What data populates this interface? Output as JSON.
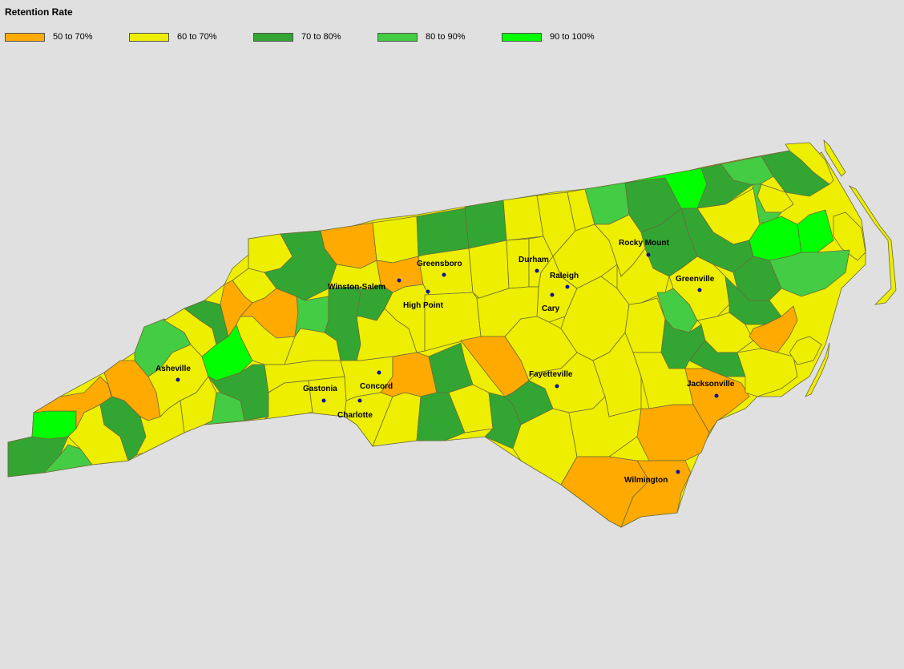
{
  "title": "Retention Rate",
  "legend": [
    {
      "label": "50 to 70%",
      "color": "#ffaa00"
    },
    {
      "label": "60 to 70%",
      "color": "#eeee00"
    },
    {
      "label": "70 to 80%",
      "color": "#33a533"
    },
    {
      "label": "80 to 90%",
      "color": "#44cc44"
    },
    {
      "label": "90 to 100%",
      "color": "#00ff00"
    }
  ],
  "cities": {
    "rocky_mount": "Rocky Mount",
    "greensboro": "Greensboro",
    "durham": "Durham",
    "raleigh": "Raleigh",
    "winston_salem": "Winston-Salem",
    "greenville": "Greenville",
    "high_point": "High Point",
    "cary": "Cary",
    "asheville": "Asheville",
    "fayetteville": "Fayetteville",
    "jacksonville": "Jacksonville",
    "concord": "Concord",
    "gastonia": "Gastonia",
    "charlotte": "Charlotte",
    "wilmington": "Wilmington"
  }
}
